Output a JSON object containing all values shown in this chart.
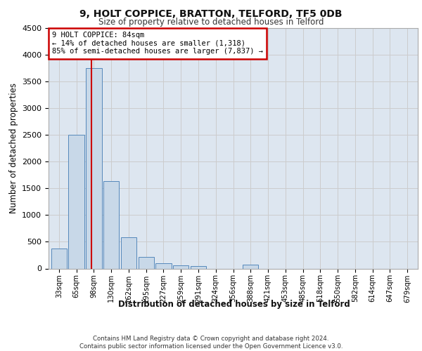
{
  "title": "9, HOLT COPPICE, BRATTON, TELFORD, TF5 0DB",
  "subtitle": "Size of property relative to detached houses in Telford",
  "xlabel": "Distribution of detached houses by size in Telford",
  "ylabel": "Number of detached properties",
  "categories": [
    "33sqm",
    "65sqm",
    "98sqm",
    "130sqm",
    "162sqm",
    "195sqm",
    "227sqm",
    "259sqm",
    "291sqm",
    "324sqm",
    "356sqm",
    "388sqm",
    "421sqm",
    "453sqm",
    "485sqm",
    "518sqm",
    "550sqm",
    "582sqm",
    "614sqm",
    "647sqm",
    "679sqm"
  ],
  "values": [
    370,
    2500,
    3750,
    1640,
    590,
    220,
    105,
    65,
    50,
    0,
    0,
    75,
    0,
    0,
    0,
    0,
    0,
    0,
    0,
    0,
    0
  ],
  "bar_color": "#c8d8e8",
  "bar_edge_color": "#5588bb",
  "vline_color": "#cc0000",
  "annotation_line1": "9 HOLT COPPICE: 84sqm",
  "annotation_line2": "← 14% of detached houses are smaller (1,318)",
  "annotation_line3": "85% of semi-detached houses are larger (7,837) →",
  "annotation_box_color": "#cc0000",
  "ylim": [
    0,
    4500
  ],
  "yticks": [
    0,
    500,
    1000,
    1500,
    2000,
    2500,
    3000,
    3500,
    4000,
    4500
  ],
  "grid_color": "#cccccc",
  "bg_color": "#dde6f0",
  "footer1": "Contains HM Land Registry data © Crown copyright and database right 2024.",
  "footer2": "Contains public sector information licensed under the Open Government Licence v3.0."
}
